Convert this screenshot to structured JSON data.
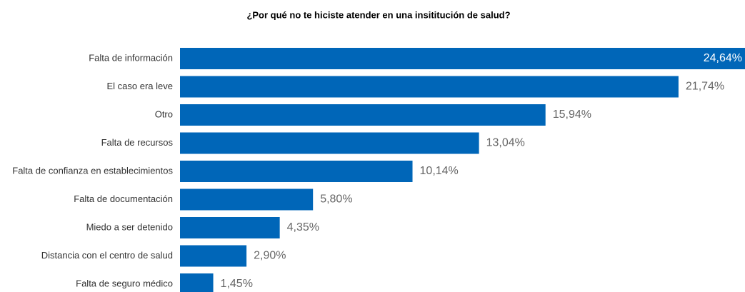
{
  "chart_data": {
    "type": "bar",
    "orientation": "horizontal",
    "title": "¿Por qué no te hiciste atender en una insititución de salud?",
    "categories": [
      "Falta de información",
      "El caso era leve",
      "Otro",
      "Falta de recursos",
      "Falta de confianza en establecimientos",
      "Falta de documentación",
      "Miedo a ser detenido",
      "Distancia con el centro de salud",
      "Falta de seguro médico"
    ],
    "values": [
      24.64,
      21.74,
      15.94,
      13.04,
      10.14,
      5.8,
      4.35,
      2.9,
      1.45
    ],
    "value_labels": [
      "24,64%",
      "21,74%",
      "15,94%",
      "13,04%",
      "10,14%",
      "5,80%",
      "4,35%",
      "2,90%",
      "1,45%"
    ],
    "color": "#0066b8"
  }
}
